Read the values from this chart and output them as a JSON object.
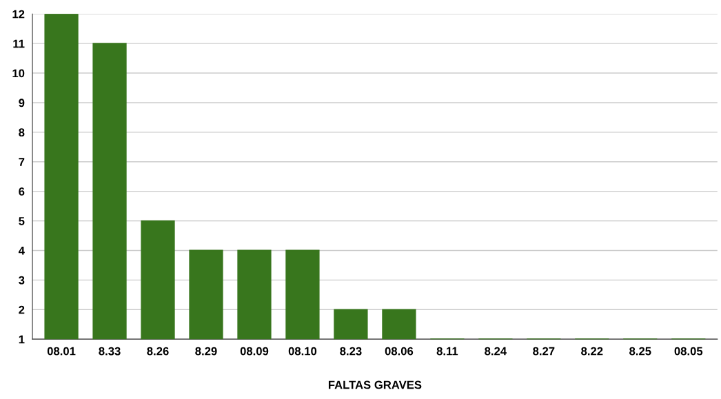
{
  "chart_data": {
    "type": "bar",
    "xlabel": "FALTAS GRAVES",
    "categories": [
      "08.01",
      "8.33",
      "8.26",
      "8.29",
      "08.09",
      "08.10",
      "8.23",
      "08.06",
      "8.11",
      "8.24",
      "8.27",
      "8.22",
      "8.25",
      "08.05"
    ],
    "values": [
      12,
      11,
      5,
      4,
      4,
      4,
      2,
      2,
      1,
      1,
      1,
      1,
      1,
      1
    ],
    "color": "#38761d",
    "ylim": [
      1,
      12
    ],
    "yticks": [
      1,
      2,
      3,
      4,
      5,
      6,
      7,
      8,
      9,
      10,
      11,
      12
    ],
    "grid": "y"
  }
}
